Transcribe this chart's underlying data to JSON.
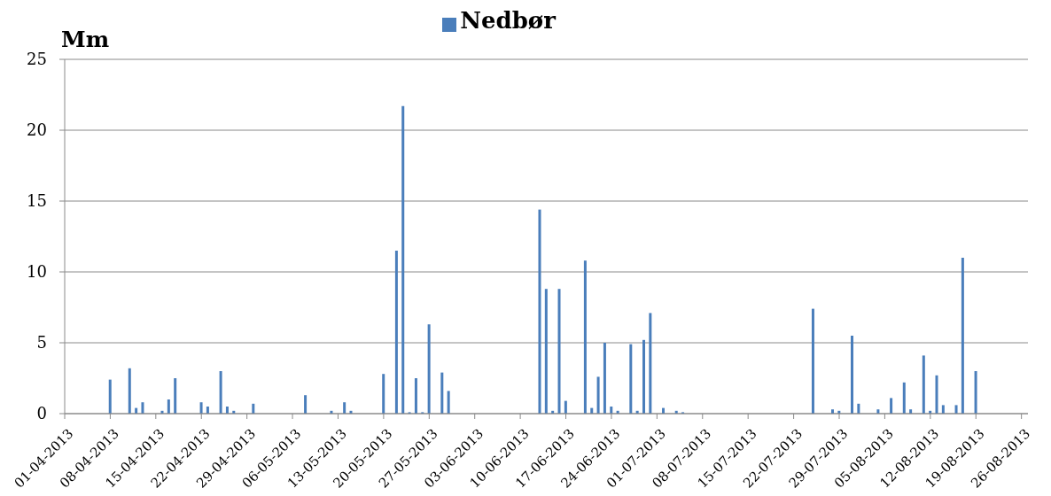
{
  "chart_data": {
    "type": "bar",
    "ylabel": "Mm",
    "legend": "top",
    "grid": "y",
    "x": [
      "2013-04-08",
      "2013-04-11",
      "2013-04-12",
      "2013-04-13",
      "2013-04-16",
      "2013-04-17",
      "2013-04-18",
      "2013-04-22",
      "2013-04-23",
      "2013-04-25",
      "2013-04-26",
      "2013-04-27",
      "2013-04-30",
      "2013-05-08",
      "2013-05-12",
      "2013-05-14",
      "2013-05-15",
      "2013-05-20",
      "2013-05-22",
      "2013-05-23",
      "2013-05-24",
      "2013-05-25",
      "2013-05-26",
      "2013-05-27",
      "2013-05-29",
      "2013-05-30",
      "2013-06-13",
      "2013-06-14",
      "2013-06-15",
      "2013-06-16",
      "2013-06-17",
      "2013-06-20",
      "2013-06-21",
      "2013-06-22",
      "2013-06-23",
      "2013-06-24",
      "2013-06-25",
      "2013-06-27",
      "2013-06-28",
      "2013-06-29",
      "2013-06-30",
      "2013-07-02",
      "2013-07-04",
      "2013-07-05",
      "2013-07-25",
      "2013-07-28",
      "2013-07-29",
      "2013-07-31",
      "2013-08-01",
      "2013-08-04",
      "2013-08-06",
      "2013-08-08",
      "2013-08-09",
      "2013-08-11",
      "2013-08-12",
      "2013-08-13",
      "2013-08-14",
      "2013-08-16",
      "2013-08-17",
      "2013-08-19"
    ],
    "series": [
      {
        "name": "Nedbør",
        "color": "#4a7ebb",
        "values": [
          2.4,
          3.2,
          0.4,
          0.8,
          0.2,
          1.0,
          2.5,
          0.8,
          0.5,
          3.0,
          0.5,
          0.2,
          0.7,
          1.3,
          0.2,
          0.8,
          0.2,
          2.8,
          11.5,
          21.7,
          0.1,
          2.5,
          0.1,
          6.3,
          2.9,
          1.6,
          14.4,
          8.8,
          0.2,
          8.8,
          0.9,
          10.8,
          0.4,
          2.6,
          5.0,
          0.5,
          0.2,
          4.9,
          0.2,
          5.2,
          7.1,
          0.4,
          0.2,
          0.1,
          7.4,
          0.3,
          0.2,
          5.5,
          0.7,
          0.3,
          1.1,
          2.2,
          0.3,
          4.1,
          0.2,
          2.7,
          0.6,
          0.6,
          11.0,
          3.0
        ]
      }
    ],
    "xlim": [
      "2013-04-01",
      "2013-08-27"
    ],
    "xticks": [
      {
        "value": "2013-04-01",
        "label": "01-04-2013"
      },
      {
        "value": "2013-04-08",
        "label": "08-04-2013"
      },
      {
        "value": "2013-04-15",
        "label": "15-04-2013"
      },
      {
        "value": "2013-04-22",
        "label": "22-04-2013"
      },
      {
        "value": "2013-04-29",
        "label": "29-04-2013"
      },
      {
        "value": "2013-05-06",
        "label": "06-05-2013"
      },
      {
        "value": "2013-05-13",
        "label": "13-05-2013"
      },
      {
        "value": "2013-05-20",
        "label": "20-05-2013"
      },
      {
        "value": "2013-05-27",
        "label": "27-05-2013"
      },
      {
        "value": "2013-06-03",
        "label": "03-06-2013"
      },
      {
        "value": "2013-06-10",
        "label": "10-06-2013"
      },
      {
        "value": "2013-06-17",
        "label": "17-06-2013"
      },
      {
        "value": "2013-06-24",
        "label": "24-06-2013"
      },
      {
        "value": "2013-07-01",
        "label": "01-07-2013"
      },
      {
        "value": "2013-07-08",
        "label": "08-07-2013"
      },
      {
        "value": "2013-07-15",
        "label": "15-07-2013"
      },
      {
        "value": "2013-07-22",
        "label": "22-07-2013"
      },
      {
        "value": "2013-07-29",
        "label": "29-07-2013"
      },
      {
        "value": "2013-08-05",
        "label": "05-08-2013"
      },
      {
        "value": "2013-08-12",
        "label": "12-08-2013"
      },
      {
        "value": "2013-08-19",
        "label": "19-08-2013"
      },
      {
        "value": "2013-08-26",
        "label": "26-08-2013"
      }
    ],
    "ylim": [
      0,
      25
    ],
    "yticks": [
      0,
      5,
      10,
      15,
      20,
      25
    ]
  }
}
